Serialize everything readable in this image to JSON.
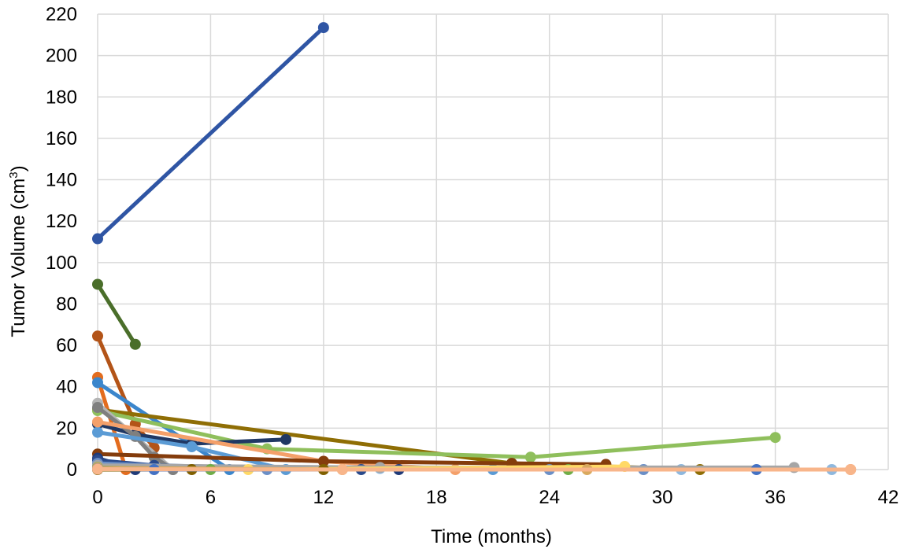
{
  "chart_data": {
    "type": "line",
    "xlabel": "Time (months)",
    "ylabel_main": "Tumor Volume  (cm",
    "ylabel_sup": "3",
    "ylabel_tail": ")",
    "xlim": [
      0,
      42
    ],
    "ylim": [
      0,
      220
    ],
    "xticks": [
      0,
      6,
      12,
      18,
      24,
      30,
      36,
      42
    ],
    "yticks": [
      0,
      20,
      40,
      60,
      80,
      100,
      120,
      140,
      160,
      180,
      200,
      220
    ],
    "grid": true,
    "legend": "none",
    "series": [
      {
        "color": "#2f55a4",
        "points": [
          [
            0,
            111.5
          ],
          [
            12,
            213.5
          ]
        ]
      },
      {
        "color": "#4a6e2a",
        "points": [
          [
            0,
            89.5
          ],
          [
            2,
            60.5
          ]
        ]
      },
      {
        "color": "#b35418",
        "points": [
          [
            0,
            64.5
          ],
          [
            2,
            22
          ],
          [
            3,
            10.5
          ]
        ]
      },
      {
        "color": "#e36c1e",
        "points": [
          [
            0,
            44.5
          ],
          [
            1.5,
            0
          ]
        ]
      },
      {
        "color": "#3b86cc",
        "points": [
          [
            0,
            42
          ],
          [
            5,
            12
          ],
          [
            7,
            0
          ]
        ]
      },
      {
        "color": "#8f6e05",
        "points": [
          [
            0,
            29
          ],
          [
            22,
            3
          ],
          [
            32,
            0
          ]
        ]
      },
      {
        "color": "#8fbf5c",
        "points": [
          [
            0,
            28.5
          ],
          [
            9,
            10
          ],
          [
            23,
            6
          ],
          [
            36,
            15.5
          ]
        ]
      },
      {
        "color": "#203864",
        "points": [
          [
            0,
            22
          ],
          [
            2,
            17
          ],
          [
            5,
            12.5
          ],
          [
            10,
            14.5
          ]
        ]
      },
      {
        "color": "#b4b4b4",
        "points": [
          [
            0,
            32
          ],
          [
            4,
            0
          ]
        ]
      },
      {
        "color": "#7f7f7f",
        "points": [
          [
            0,
            30
          ],
          [
            2,
            16
          ],
          [
            3,
            6
          ],
          [
            4,
            0
          ]
        ]
      },
      {
        "color": "#5b9bd5",
        "points": [
          [
            0,
            18
          ],
          [
            5,
            11
          ],
          [
            10,
            0
          ],
          [
            21,
            0
          ]
        ]
      },
      {
        "color": "#f4a06a",
        "points": [
          [
            0,
            23
          ],
          [
            12,
            4
          ],
          [
            19,
            0
          ],
          [
            40,
            0
          ]
        ]
      },
      {
        "color": "#843c0c",
        "points": [
          [
            0,
            7.5
          ],
          [
            12,
            4
          ],
          [
            22,
            3
          ],
          [
            27,
            2.5
          ]
        ]
      },
      {
        "color": "#1f3a78",
        "points": [
          [
            0,
            5.5
          ],
          [
            2,
            0
          ],
          [
            16,
            0
          ]
        ]
      },
      {
        "color": "#2a4a8c",
        "points": [
          [
            0,
            4.5
          ],
          [
            3,
            2
          ],
          [
            14,
            0
          ]
        ]
      },
      {
        "color": "#6b8fc7",
        "points": [
          [
            0,
            3
          ],
          [
            9,
            0
          ],
          [
            24,
            0
          ],
          [
            29,
            0
          ]
        ]
      },
      {
        "color": "#8fb8de",
        "points": [
          [
            0,
            1.5
          ],
          [
            15,
            0.5
          ],
          [
            31,
            0
          ],
          [
            39,
            0
          ]
        ]
      },
      {
        "color": "#a6a6a6",
        "points": [
          [
            0,
            2
          ],
          [
            15,
            1
          ],
          [
            37,
            1
          ]
        ]
      },
      {
        "color": "#70ad47",
        "points": [
          [
            0,
            1
          ],
          [
            6,
            0
          ],
          [
            25,
            0
          ]
        ]
      },
      {
        "color": "#ffd966",
        "points": [
          [
            0,
            0.5
          ],
          [
            8,
            0
          ],
          [
            28,
            1.5
          ]
        ]
      },
      {
        "color": "#806000",
        "points": [
          [
            0,
            0
          ],
          [
            5,
            0
          ],
          [
            12,
            0
          ]
        ]
      },
      {
        "color": "#d9a95e",
        "points": [
          [
            0,
            0.8
          ],
          [
            13,
            0
          ],
          [
            26,
            0
          ]
        ]
      },
      {
        "color": "#4472c4",
        "points": [
          [
            0,
            0.3
          ],
          [
            3,
            0
          ],
          [
            35,
            0
          ]
        ]
      },
      {
        "color": "#f8b58a",
        "points": [
          [
            0,
            0.2
          ],
          [
            13,
            0
          ],
          [
            40,
            0
          ]
        ]
      }
    ]
  }
}
